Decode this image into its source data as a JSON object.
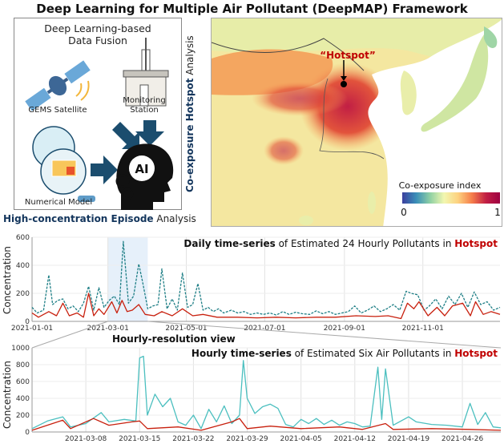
{
  "title": "Deep Learning for Multiple Air Pollutant (DeepMAP) Framework",
  "fusion_panel": {
    "title_line1": "Deep Learning-based",
    "title_line2": "Data Fusion",
    "satellite_label": "GEMS Satellite",
    "station_label_line1": "Monitoring",
    "station_label_line2": "Station",
    "model_label": "Numerical Model",
    "ai_label": "AI"
  },
  "hotspot_analysis": {
    "prefix": "Co-exposure ",
    "emphasis": "Hotspot",
    "suffix": " Analysis"
  },
  "episode_analysis": {
    "emphasis": "High-concentration Episode",
    "suffix": " Analysis"
  },
  "map": {
    "hotspot_label": "“Hotspot”",
    "colorbar_title": "Co-exposure index",
    "colorbar_min": "0",
    "colorbar_max": "1",
    "colorbar_colors": [
      "#3b3f9e",
      "#3a8fb8",
      "#8fd0a4",
      "#f2f7b0",
      "#fdd17f",
      "#f57d4a",
      "#c11f44",
      "#9e0142"
    ]
  },
  "colors": {
    "accent_navy": "#13355c",
    "hotspot_red": "#c00000",
    "teal": "#4bbfbf",
    "teal_dark": "#1f7f86",
    "red": "#c8200e",
    "orange": "#f08a4b",
    "highlight": "#e6f0fa"
  },
  "zoom_label": "Hourly-resolution view",
  "chart_data": [
    {
      "type": "line",
      "title_bold": "Daily time-series",
      "title_rest": " of Estimated 24 Hourly Pollutants in ",
      "title_hot": "Hotspot",
      "ylabel": "Concentration",
      "xlim": [
        "2021-01-01",
        "2021-12-31"
      ],
      "ylim": [
        0,
        600
      ],
      "yticks": [
        0,
        200,
        400,
        600
      ],
      "xticks": [
        "2021-01-01",
        "2021-03-01",
        "2021-05-01",
        "2021-07-01",
        "2021-09-01",
        "2021-11-01"
      ],
      "grid": true,
      "highlight_range": [
        "2021-03-01",
        "2021-04-01"
      ],
      "series": [
        {
          "color": "#1f7f86",
          "dash": true,
          "points": [
            [
              "2021-01-01",
              100
            ],
            [
              "2021-01-05",
              60
            ],
            [
              "2021-01-10",
              80
            ],
            [
              "2021-01-14",
              330
            ],
            [
              "2021-01-17",
              120
            ],
            [
              "2021-01-21",
              150
            ],
            [
              "2021-01-25",
              160
            ],
            [
              "2021-01-29",
              90
            ],
            [
              "2021-02-02",
              110
            ],
            [
              "2021-02-06",
              70
            ],
            [
              "2021-02-10",
              130
            ],
            [
              "2021-02-14",
              250
            ],
            [
              "2021-02-18",
              80
            ],
            [
              "2021-02-22",
              240
            ],
            [
              "2021-02-26",
              100
            ],
            [
              "2021-03-02",
              150
            ],
            [
              "2021-03-06",
              180
            ],
            [
              "2021-03-10",
              120
            ],
            [
              "2021-03-13",
              570
            ],
            [
              "2021-03-17",
              130
            ],
            [
              "2021-03-21",
              180
            ],
            [
              "2021-03-25",
              410
            ],
            [
              "2021-03-28",
              280
            ],
            [
              "2021-04-01",
              90
            ],
            [
              "2021-04-05",
              110
            ],
            [
              "2021-04-09",
              120
            ],
            [
              "2021-04-12",
              375
            ],
            [
              "2021-04-16",
              90
            ],
            [
              "2021-04-20",
              160
            ],
            [
              "2021-04-24",
              80
            ],
            [
              "2021-04-28",
              345
            ],
            [
              "2021-05-02",
              100
            ],
            [
              "2021-05-06",
              120
            ],
            [
              "2021-05-10",
              270
            ],
            [
              "2021-05-14",
              80
            ],
            [
              "2021-05-18",
              100
            ],
            [
              "2021-05-22",
              70
            ],
            [
              "2021-05-26",
              90
            ],
            [
              "2021-05-30",
              60
            ],
            [
              "2021-06-05",
              80
            ],
            [
              "2021-06-10",
              60
            ],
            [
              "2021-06-15",
              70
            ],
            [
              "2021-06-20",
              50
            ],
            [
              "2021-06-25",
              60
            ],
            [
              "2021-06-30",
              50
            ],
            [
              "2021-07-05",
              60
            ],
            [
              "2021-07-10",
              45
            ],
            [
              "2021-07-15",
              70
            ],
            [
              "2021-07-20",
              50
            ],
            [
              "2021-07-25",
              65
            ],
            [
              "2021-07-30",
              55
            ],
            [
              "2021-08-05",
              50
            ],
            [
              "2021-08-10",
              75
            ],
            [
              "2021-08-15",
              55
            ],
            [
              "2021-08-20",
              70
            ],
            [
              "2021-08-25",
              50
            ],
            [
              "2021-08-30",
              60
            ],
            [
              "2021-09-04",
              70
            ],
            [
              "2021-09-09",
              110
            ],
            [
              "2021-09-14",
              60
            ],
            [
              "2021-09-19",
              80
            ],
            [
              "2021-09-24",
              110
            ],
            [
              "2021-09-29",
              70
            ],
            [
              "2021-10-04",
              90
            ],
            [
              "2021-10-09",
              120
            ],
            [
              "2021-10-14",
              80
            ],
            [
              "2021-10-19",
              215
            ],
            [
              "2021-10-23",
              200
            ],
            [
              "2021-10-28",
              190
            ],
            [
              "2021-11-02",
              80
            ],
            [
              "2021-11-06",
              110
            ],
            [
              "2021-11-11",
              160
            ],
            [
              "2021-11-16",
              90
            ],
            [
              "2021-11-21",
              180
            ],
            [
              "2021-11-26",
              120
            ],
            [
              "2021-12-01",
              200
            ],
            [
              "2021-12-06",
              100
            ],
            [
              "2021-12-11",
              210
            ],
            [
              "2021-12-16",
              120
            ],
            [
              "2021-12-21",
              140
            ],
            [
              "2021-12-26",
              80
            ],
            [
              "2021-12-31",
              100
            ]
          ]
        },
        {
          "color": "#c8200e",
          "dash": false,
          "points": [
            [
              "2021-01-01",
              60
            ],
            [
              "2021-01-06",
              30
            ],
            [
              "2021-01-14",
              70
            ],
            [
              "2021-01-20",
              40
            ],
            [
              "2021-01-25",
              130
            ],
            [
              "2021-01-30",
              40
            ],
            [
              "2021-02-05",
              60
            ],
            [
              "2021-02-10",
              30
            ],
            [
              "2021-02-14",
              200
            ],
            [
              "2021-02-18",
              40
            ],
            [
              "2021-02-22",
              90
            ],
            [
              "2021-02-26",
              50
            ],
            [
              "2021-03-04",
              140
            ],
            [
              "2021-03-08",
              60
            ],
            [
              "2021-03-12",
              150
            ],
            [
              "2021-03-16",
              70
            ],
            [
              "2021-03-20",
              80
            ],
            [
              "2021-03-25",
              120
            ],
            [
              "2021-03-30",
              50
            ],
            [
              "2021-04-06",
              40
            ],
            [
              "2021-04-12",
              70
            ],
            [
              "2021-04-20",
              40
            ],
            [
              "2021-04-28",
              90
            ],
            [
              "2021-05-06",
              40
            ],
            [
              "2021-05-14",
              50
            ],
            [
              "2021-05-25",
              30
            ],
            [
              "2021-06-10",
              30
            ],
            [
              "2021-06-25",
              25
            ],
            [
              "2021-07-10",
              30
            ],
            [
              "2021-07-25",
              25
            ],
            [
              "2021-08-10",
              30
            ],
            [
              "2021-08-25",
              30
            ],
            [
              "2021-09-10",
              40
            ],
            [
              "2021-09-25",
              35
            ],
            [
              "2021-10-05",
              40
            ],
            [
              "2021-10-15",
              20
            ],
            [
              "2021-10-20",
              130
            ],
            [
              "2021-10-25",
              90
            ],
            [
              "2021-10-29",
              140
            ],
            [
              "2021-11-05",
              40
            ],
            [
              "2021-11-12",
              100
            ],
            [
              "2021-11-18",
              40
            ],
            [
              "2021-11-24",
              110
            ],
            [
              "2021-12-02",
              130
            ],
            [
              "2021-12-08",
              40
            ],
            [
              "2021-12-12",
              140
            ],
            [
              "2021-12-18",
              50
            ],
            [
              "2021-12-24",
              70
            ],
            [
              "2021-12-31",
              50
            ]
          ]
        }
      ]
    },
    {
      "type": "line",
      "title_bold": "Hourly time-series",
      "title_rest": " of Estimated Six Air Pollutants in ",
      "title_hot": "Hotspot",
      "ylabel": "Concentration",
      "xlim": [
        "2021-03-01",
        "2021-05-01"
      ],
      "ylim": [
        0,
        1000
      ],
      "yticks": [
        0,
        200,
        400,
        600,
        800,
        1000
      ],
      "xticks": [
        "2021-03-08",
        "2021-03-15",
        "2021-03-22",
        "2021-03-29",
        "2021-04-05",
        "2021-04-12",
        "2021-04-19",
        "2021-04-26"
      ],
      "grid": true,
      "series": [
        {
          "color": "#4bbfbf",
          "dash": false,
          "points": [
            [
              "2021-03-01",
              40
            ],
            [
              "2021-03-03",
              130
            ],
            [
              "2021-03-05",
              180
            ],
            [
              "2021-03-06",
              60
            ],
            [
              "2021-03-08",
              100
            ],
            [
              "2021-03-10",
              230
            ],
            [
              "2021-03-11",
              120
            ],
            [
              "2021-03-13",
              150
            ],
            [
              "2021-03-14T12:00",
              130
            ],
            [
              "2021-03-15",
              880
            ],
            [
              "2021-03-15T12:00",
              900
            ],
            [
              "2021-03-16",
              200
            ],
            [
              "2021-03-17",
              450
            ],
            [
              "2021-03-18",
              300
            ],
            [
              "2021-03-19",
              400
            ],
            [
              "2021-03-20",
              120
            ],
            [
              "2021-03-21",
              80
            ],
            [
              "2021-03-22",
              200
            ],
            [
              "2021-03-23",
              40
            ],
            [
              "2021-03-24",
              270
            ],
            [
              "2021-03-25",
              120
            ],
            [
              "2021-03-26",
              310
            ],
            [
              "2021-03-27",
              100
            ],
            [
              "2021-03-28",
              200
            ],
            [
              "2021-03-28T12:00",
              850
            ],
            [
              "2021-03-29",
              400
            ],
            [
              "2021-03-30",
              220
            ],
            [
              "2021-03-31",
              300
            ],
            [
              "2021-04-01",
              330
            ],
            [
              "2021-04-02",
              280
            ],
            [
              "2021-04-03",
              90
            ],
            [
              "2021-04-04",
              60
            ],
            [
              "2021-04-05",
              150
            ],
            [
              "2021-04-06",
              100
            ],
            [
              "2021-04-07",
              160
            ],
            [
              "2021-04-08",
              90
            ],
            [
              "2021-04-09",
              140
            ],
            [
              "2021-04-10",
              80
            ],
            [
              "2021-04-11",
              120
            ],
            [
              "2021-04-12",
              100
            ],
            [
              "2021-04-13",
              60
            ],
            [
              "2021-04-14",
              70
            ],
            [
              "2021-04-15",
              770
            ],
            [
              "2021-04-15T12:00",
              150
            ],
            [
              "2021-04-16",
              750
            ],
            [
              "2021-04-17",
              80
            ],
            [
              "2021-04-19",
              180
            ],
            [
              "2021-04-20",
              120
            ],
            [
              "2021-04-22",
              90
            ],
            [
              "2021-04-24",
              80
            ],
            [
              "2021-04-26",
              60
            ],
            [
              "2021-04-27",
              340
            ],
            [
              "2021-04-28",
              90
            ],
            [
              "2021-04-29",
              230
            ],
            [
              "2021-04-30",
              60
            ],
            [
              "2021-05-01",
              50
            ]
          ]
        },
        {
          "color": "#c8200e",
          "dash": false,
          "points": [
            [
              "2021-03-01",
              20
            ],
            [
              "2021-03-05",
              140
            ],
            [
              "2021-03-06",
              40
            ],
            [
              "2021-03-09",
              160
            ],
            [
              "2021-03-11",
              80
            ],
            [
              "2021-03-14",
              120
            ],
            [
              "2021-03-15",
              130
            ],
            [
              "2021-03-16",
              40
            ],
            [
              "2021-03-20",
              60
            ],
            [
              "2021-03-23",
              20
            ],
            [
              "2021-03-27",
              120
            ],
            [
              "2021-03-28",
              160
            ],
            [
              "2021-03-29",
              40
            ],
            [
              "2021-04-01",
              70
            ],
            [
              "2021-04-05",
              40
            ],
            [
              "2021-04-10",
              60
            ],
            [
              "2021-04-13",
              30
            ],
            [
              "2021-04-16",
              100
            ],
            [
              "2021-04-17",
              30
            ],
            [
              "2021-04-22",
              40
            ],
            [
              "2021-04-27",
              30
            ],
            [
              "2021-05-01",
              20
            ]
          ]
        }
      ]
    }
  ]
}
